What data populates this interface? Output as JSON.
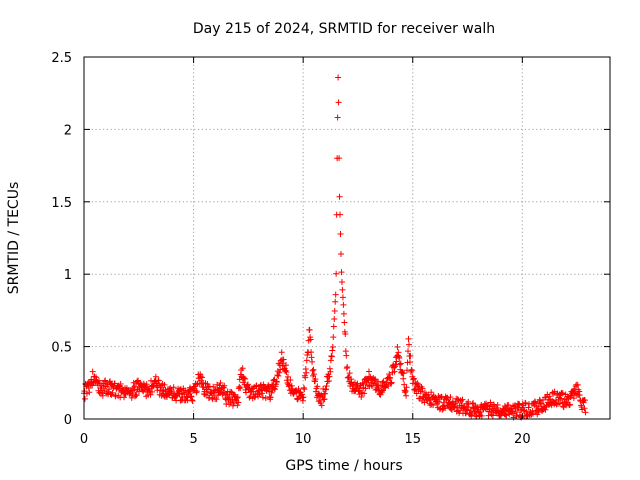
{
  "chart_data": {
    "type": "scatter",
    "title": "Day 215 of 2024, SRMTID for receiver walh",
    "xlabel": "GPS time / hours",
    "ylabel": "SRMTID / TECUs",
    "xlim": [
      0,
      24
    ],
    "ylim": [
      0,
      2.5
    ],
    "xticks": [
      0,
      5,
      10,
      15,
      20
    ],
    "xtick_labels": [
      "0",
      "5",
      "10",
      "15",
      "20"
    ],
    "yticks": [
      0,
      0.5,
      1,
      1.5,
      2,
      2.5
    ],
    "ytick_labels": [
      "0",
      "0.5",
      "1",
      "1.5",
      "2",
      "2.5"
    ],
    "grid": true,
    "marker": "+",
    "color": "#ff0000",
    "series": [
      {
        "name": "SRMTID",
        "profile": {
          "x": [
            0,
            0.2,
            0.4,
            0.6,
            0.8,
            1.0,
            1.5,
            2.0,
            2.5,
            3.0,
            3.2,
            3.5,
            4.0,
            4.5,
            5.0,
            5.3,
            5.5,
            6.0,
            6.3,
            6.5,
            7.0,
            7.2,
            7.5,
            8.0,
            8.5,
            8.8,
            9.0,
            9.5,
            10.0,
            10.2,
            10.3,
            10.5,
            10.8,
            11.0,
            11.3,
            11.5,
            11.55,
            11.6,
            11.65,
            11.75,
            11.85,
            12.0,
            12.3,
            12.6,
            13.0,
            13.5,
            14.0,
            14.3,
            14.7,
            14.8,
            15.0,
            15.3,
            15.7,
            16.0,
            16.5,
            17.0,
            17.5,
            18.0,
            18.5,
            19.0,
            19.5,
            20.0,
            20.5,
            21.0,
            21.2,
            21.5,
            22.0,
            22.3,
            22.5,
            22.7,
            22.9
          ],
          "y": [
            0.18,
            0.22,
            0.28,
            0.25,
            0.2,
            0.22,
            0.2,
            0.18,
            0.22,
            0.2,
            0.27,
            0.2,
            0.18,
            0.17,
            0.17,
            0.3,
            0.2,
            0.18,
            0.22,
            0.15,
            0.12,
            0.32,
            0.18,
            0.2,
            0.18,
            0.28,
            0.42,
            0.2,
            0.17,
            0.45,
            0.62,
            0.25,
            0.13,
            0.18,
            0.4,
            0.9,
            1.8,
            2.45,
            1.6,
            1.0,
            0.75,
            0.32,
            0.22,
            0.18,
            0.28,
            0.2,
            0.28,
            0.45,
            0.2,
            0.52,
            0.25,
            0.18,
            0.15,
            0.12,
            0.11,
            0.09,
            0.08,
            0.06,
            0.07,
            0.07,
            0.06,
            0.06,
            0.07,
            0.1,
            0.14,
            0.15,
            0.12,
            0.17,
            0.2,
            0.12,
            0.08
          ]
        }
      }
    ]
  }
}
